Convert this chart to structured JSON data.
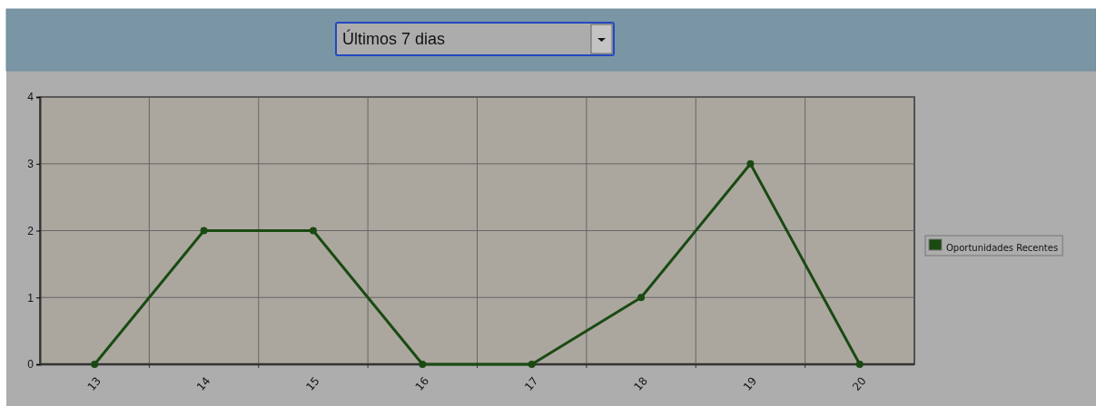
{
  "chart_data": {
    "type": "line",
    "annotations": [
      "Últimos 7 dias"
    ],
    "categories": [
      "13",
      "14",
      "15",
      "16",
      "17",
      "18",
      "19",
      "20"
    ],
    "series": [
      {
        "name": "Oportunidades Recentes",
        "color": "#1a4a12",
        "values": [
          0,
          2,
          2,
          0,
          0,
          1,
          3,
          0
        ]
      }
    ],
    "ylim": [
      0,
      4
    ],
    "yticks": [
      0,
      1,
      2,
      3,
      4
    ],
    "grid": true,
    "legend": "right",
    "marker": "circle",
    "line_style": "solid"
  }
}
